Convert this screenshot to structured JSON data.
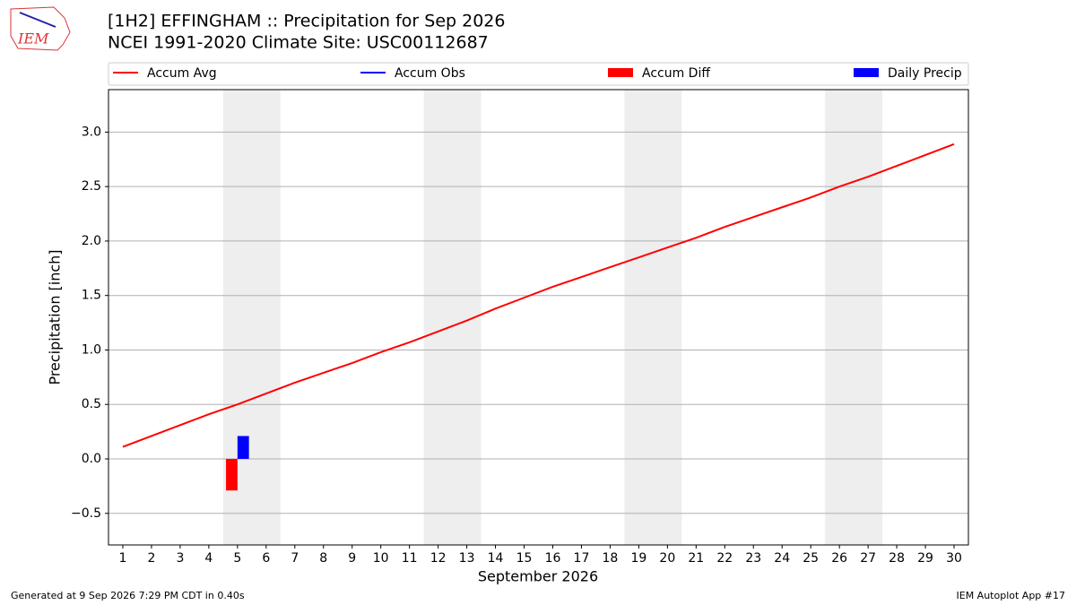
{
  "header": {
    "logo": "IEM",
    "footer_left": "Generated at 9 Sep 2026 7:29 PM CDT in 0.40s",
    "footer_right": "IEM Autoplot App #17"
  },
  "chart_data": {
    "type": "line",
    "title": "[1H2] EFFINGHAM :: Precipitation for Sep 2026",
    "subtitle": "NCEI 1991-2020 Climate Site: USC00112687",
    "xlabel": "September 2026",
    "ylabel": "Precipitation [inch]",
    "x": [
      1,
      2,
      3,
      4,
      5,
      6,
      7,
      8,
      9,
      10,
      11,
      12,
      13,
      14,
      15,
      16,
      17,
      18,
      19,
      20,
      21,
      22,
      23,
      24,
      25,
      26,
      27,
      28,
      29,
      30
    ],
    "series": [
      {
        "name": "Accum Avg",
        "color": "#ff0000",
        "kind": "line",
        "values": [
          0.11,
          0.21,
          0.31,
          0.41,
          0.5,
          0.6,
          0.7,
          0.79,
          0.88,
          0.98,
          1.07,
          1.17,
          1.27,
          1.38,
          1.48,
          1.58,
          1.67,
          1.76,
          1.85,
          1.94,
          2.03,
          2.13,
          2.22,
          2.31,
          2.4,
          2.5,
          2.59,
          2.69,
          2.79,
          2.89
        ]
      },
      {
        "name": "Accum Obs",
        "color": "#0000ff",
        "kind": "line",
        "values": [
          null,
          null,
          null,
          null,
          null,
          null,
          null,
          null,
          null,
          null,
          null,
          null,
          null,
          null,
          null,
          null,
          null,
          null,
          null,
          null,
          null,
          null,
          null,
          null,
          null,
          null,
          null,
          null,
          null,
          null
        ]
      },
      {
        "name": "Accum Diff",
        "color": "#ff0000",
        "kind": "bar",
        "values": [
          null,
          null,
          null,
          null,
          -0.29,
          null,
          null,
          null,
          null,
          null,
          null,
          null,
          null,
          null,
          null,
          null,
          null,
          null,
          null,
          null,
          null,
          null,
          null,
          null,
          null,
          null,
          null,
          null,
          null,
          null
        ]
      },
      {
        "name": "Daily Precip",
        "color": "#0000ff",
        "kind": "bar",
        "values": [
          null,
          null,
          null,
          null,
          0.21,
          null,
          null,
          null,
          null,
          null,
          null,
          null,
          null,
          null,
          null,
          null,
          null,
          null,
          null,
          null,
          null,
          null,
          null,
          null,
          null,
          null,
          null,
          null,
          null,
          null
        ]
      }
    ],
    "weekend_bands": [
      [
        4.5,
        6.5
      ],
      [
        11.5,
        13.5
      ],
      [
        18.5,
        20.5
      ],
      [
        25.5,
        27.5
      ]
    ],
    "xlim": [
      0.5,
      30.5
    ],
    "ylim": [
      -0.79,
      3.39
    ],
    "xticks": [
      1,
      2,
      3,
      4,
      5,
      6,
      7,
      8,
      9,
      10,
      11,
      12,
      13,
      14,
      15,
      16,
      17,
      18,
      19,
      20,
      21,
      22,
      23,
      24,
      25,
      26,
      27,
      28,
      29,
      30
    ],
    "yticks": [
      {
        "value": -0.5,
        "label": "−0.5"
      },
      {
        "value": 0,
        "label": "0.0"
      },
      {
        "value": 0.5,
        "label": "0.5"
      },
      {
        "value": 1,
        "label": "1.0"
      },
      {
        "value": 1.5,
        "label": "1.5"
      },
      {
        "value": 2,
        "label": "2.0"
      },
      {
        "value": 2.5,
        "label": "2.5"
      },
      {
        "value": 3,
        "label": "3.0"
      }
    ],
    "grid": true
  }
}
